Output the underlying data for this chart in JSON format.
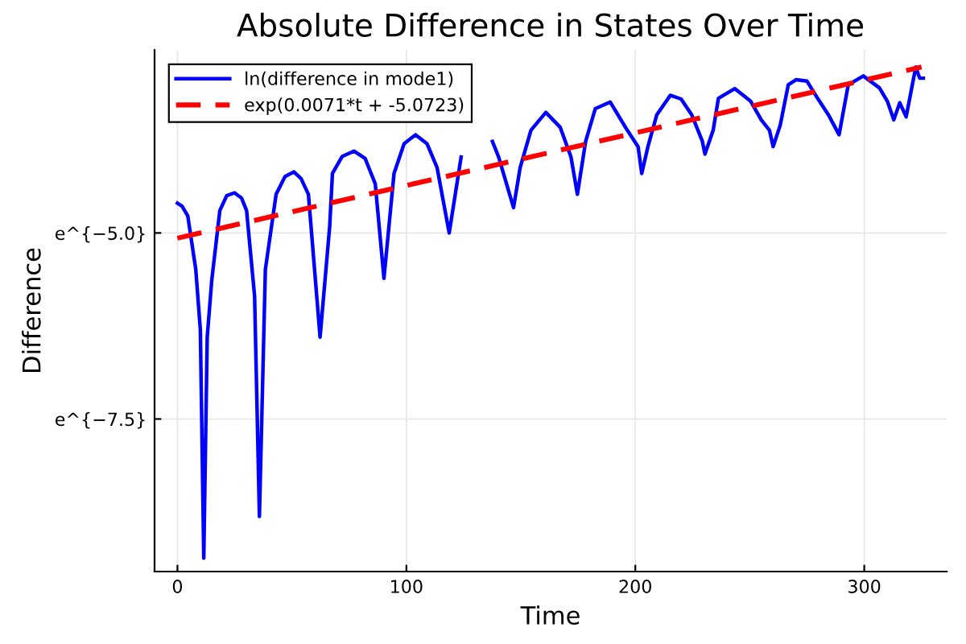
{
  "chart_data": {
    "type": "line",
    "title": "Absolute Difference in States Over Time",
    "xlabel": "Time",
    "ylabel": "Difference",
    "grid": true,
    "legend": "top left",
    "xlim": [
      -10,
      336
    ],
    "xticks": [
      0,
      100,
      200,
      300
    ],
    "ylim": [
      -9.55,
      -2.54
    ],
    "yticks": [
      {
        "value": -7.5,
        "label": "e^{−7.5}"
      },
      {
        "value": -5.0,
        "label": "e^{−5.0}"
      }
    ],
    "series": [
      {
        "name": "ln(difference in mode1)",
        "color": "#0000ff",
        "line_style": "solid",
        "x": [
          0,
          2,
          4.5,
          8,
          10,
          11.5,
          13,
          15,
          18.5,
          21.5,
          24.9,
          28,
          30.2,
          33.7,
          35.8,
          38.4,
          43.1,
          47,
          50.9,
          54,
          57.2,
          62.3,
          66.5,
          67.7,
          72,
          77.1,
          82,
          86.4,
          90.2,
          94.6,
          99,
          104,
          109,
          113.4,
          118.7,
          123.9,
          131,
          137.6,
          140.3,
          146.8,
          149.7,
          154.4,
          160.9,
          167.2,
          171.9,
          174.7,
          178.3,
          182.5,
          189,
          196.5,
          201.2,
          202.8,
          205.5,
          209.4,
          215.3,
          220,
          224.6,
          229.3,
          230.4,
          234,
          236.3,
          243.4,
          250.4,
          255,
          258.6,
          260.2,
          263.3,
          266.8,
          270.3,
          275,
          279.6,
          284.3,
          289,
          293,
          299.6,
          306.6,
          310.1,
          312.9,
          315.5,
          318.3,
          322.5,
          324.2,
          325.8
        ],
        "values": [
          -4.6,
          -4.64,
          -4.77,
          -5.49,
          -6.3,
          -9.37,
          -6.4,
          -5.63,
          -4.7,
          -4.5,
          -4.46,
          -4.53,
          -4.7,
          -5.85,
          -8.81,
          -5.49,
          -4.48,
          -4.24,
          -4.18,
          -4.27,
          -4.48,
          -6.4,
          -4.91,
          -4.2,
          -3.97,
          -3.9,
          -4.0,
          -4.34,
          -5.61,
          -4.2,
          -3.8,
          -3.68,
          -3.8,
          -4.12,
          -5.0,
          -3.98,
          null,
          -3.77,
          -3.98,
          -4.66,
          -4.12,
          -3.62,
          -3.38,
          -3.58,
          -3.98,
          -4.48,
          -3.77,
          -3.33,
          -3.24,
          -3.62,
          -3.84,
          -4.2,
          -3.84,
          -3.41,
          -3.15,
          -3.2,
          -3.41,
          -3.77,
          -3.94,
          -3.62,
          -3.19,
          -3.06,
          -3.23,
          -3.48,
          -3.62,
          -3.84,
          -3.55,
          -3.01,
          -2.94,
          -2.96,
          -3.19,
          -3.41,
          -3.68,
          -3.01,
          -2.89,
          -3.05,
          -3.23,
          -3.48,
          -3.25,
          -3.44,
          -2.77,
          -2.92,
          -2.92
        ]
      },
      {
        "name": "exp(0.0071*t + -5.0723)",
        "color": "#ff0000",
        "line_style": "dashed",
        "x": [
          0,
          325
        ],
        "values": [
          -5.07,
          -2.77
        ]
      }
    ]
  }
}
